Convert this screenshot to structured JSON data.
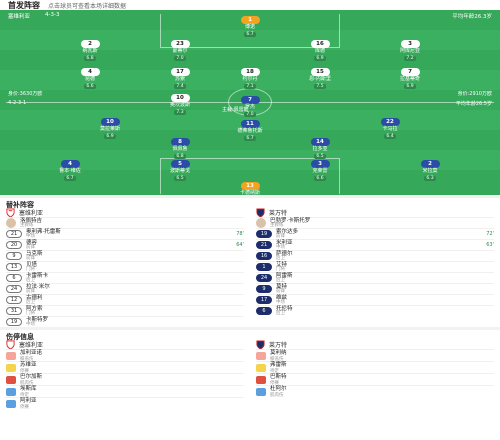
{
  "header": {
    "title": "首发阵容",
    "subtitle": "点击球员可查看本场详细数据"
  },
  "home": {
    "formation": "4-3-3",
    "info": "身价:3630万欧",
    "coach_label": "主教练",
    "avg_age": "平均年龄26.3岁",
    "name": "塞维利亚"
  },
  "away": {
    "formation": "4-2-3-1",
    "info": "身价:2910万欧",
    "avg_age": "平均年龄26.5岁",
    "name": "莱万特"
  },
  "referee": "主裁:佩雷斯",
  "home_players": [
    {
      "no": "1",
      "name": "博诺",
      "rating": "6.7"
    },
    {
      "no": "2",
      "name": "纳瓦斯",
      "rating": "6.8"
    },
    {
      "no": "23",
      "name": "蒙蒂尔",
      "rating": "7.0"
    },
    {
      "no": "16",
      "name": "库德",
      "rating": "6.9"
    },
    {
      "no": "3",
      "name": "阿库尼亚",
      "rating": "7.2"
    },
    {
      "no": "4",
      "name": "昆德",
      "rating": "6.6"
    },
    {
      "no": "17",
      "name": "苏索",
      "rating": "7.4"
    },
    {
      "no": "18",
      "name": "约尔丹",
      "rating": "7.1"
    },
    {
      "no": "15",
      "name": "恩-内斯里",
      "rating": "7.5"
    },
    {
      "no": "7",
      "name": "拉基蒂奇",
      "rating": "6.9"
    },
    {
      "no": "10",
      "name": "奥坎波斯",
      "rating": "7.3"
    }
  ],
  "away_players": [
    {
      "no": "13",
      "name": "卡德纳斯",
      "rating": "6.4"
    },
    {
      "no": "4",
      "name": "鲁本·维佐",
      "rating": "6.7"
    },
    {
      "no": "5",
      "name": "波斯蒂戈",
      "rating": "6.5"
    },
    {
      "no": "3",
      "name": "克莱雷",
      "rating": "6.6"
    },
    {
      "no": "2",
      "name": "米拉莫",
      "rating": "6.3"
    },
    {
      "no": "8",
      "name": "佩佩鲁",
      "rating": "6.8"
    },
    {
      "no": "14",
      "name": "拉多亚",
      "rating": "6.5"
    },
    {
      "no": "10",
      "name": "莫拉莱斯",
      "rating": "6.9"
    },
    {
      "no": "11",
      "name": "德弗鲁托斯",
      "rating": "6.7"
    },
    {
      "no": "22",
      "name": "卡马拉",
      "rating": "6.4"
    },
    {
      "no": "7",
      "name": "罗杰",
      "rating": "7.0"
    }
  ],
  "subs_title": "替补阵容",
  "coaches": {
    "home": "洛佩特吉",
    "home_role": "主教练",
    "away": "巴勃罗·卡斯托罗",
    "away_role": "主教练"
  },
  "home_subs": [
    {
      "no": "21",
      "name": "奥利弗·托雷斯",
      "pos": "中场",
      "event": "78'"
    },
    {
      "no": "20",
      "name": "德容",
      "pos": "前锋",
      "event": "64'"
    },
    {
      "no": "9",
      "name": "马克斯",
      "pos": "前锋",
      "event": ""
    },
    {
      "no": "13",
      "name": "贝塔",
      "pos": "门将",
      "event": ""
    },
    {
      "no": "6",
      "name": "卡雷斯卡",
      "pos": "后卫",
      "event": ""
    },
    {
      "no": "24",
      "name": "拉法·米尔",
      "pos": "前锋",
      "event": ""
    },
    {
      "no": "12",
      "name": "古德利",
      "pos": "后卫",
      "event": ""
    },
    {
      "no": "31",
      "name": "阿方索",
      "pos": "门将",
      "event": ""
    },
    {
      "no": "19",
      "name": "卡斯特罗",
      "pos": "中场",
      "event": ""
    }
  ],
  "away_subs": [
    {
      "no": "19",
      "name": "索尔达多",
      "pos": "前锋",
      "event": "72'"
    },
    {
      "no": "21",
      "name": "米利亚",
      "pos": "中场",
      "event": "63'"
    },
    {
      "no": "16",
      "name": "萨德尔",
      "pos": "后卫",
      "event": ""
    },
    {
      "no": "1",
      "name": "艾特",
      "pos": "门将",
      "event": ""
    },
    {
      "no": "24",
      "name": "阿雷斯",
      "pos": "后卫",
      "event": ""
    },
    {
      "no": "9",
      "name": "莫特",
      "pos": "前锋",
      "event": ""
    },
    {
      "no": "17",
      "name": "维兹",
      "pos": "中场",
      "event": ""
    },
    {
      "no": "6",
      "name": "托伦特",
      "pos": "后卫",
      "event": ""
    }
  ],
  "injury_title": "伤停信息",
  "home_injuries": [
    {
      "name": "加利亚诺",
      "sub": "膝盖伤"
    },
    {
      "name": "苏维亚",
      "sub": "停赛"
    },
    {
      "name": "巴尔加斯",
      "sub": "肌肉伤"
    },
    {
      "name": "埃斯库",
      "sub": "待定"
    },
    {
      "name": "阿利亚",
      "sub": "停赛"
    }
  ],
  "away_injuries": [
    {
      "name": "莫利纳",
      "sub": "膝盖伤"
    },
    {
      "name": "弗雷斯",
      "sub": "待定"
    },
    {
      "name": "巴斯特",
      "sub": "停赛"
    },
    {
      "name": "杜阿尔",
      "sub": "肌肉伤"
    }
  ],
  "colors": {
    "pitch": "#36a85a",
    "away": "#1d2d6b",
    "gk": "#f4a21f"
  }
}
